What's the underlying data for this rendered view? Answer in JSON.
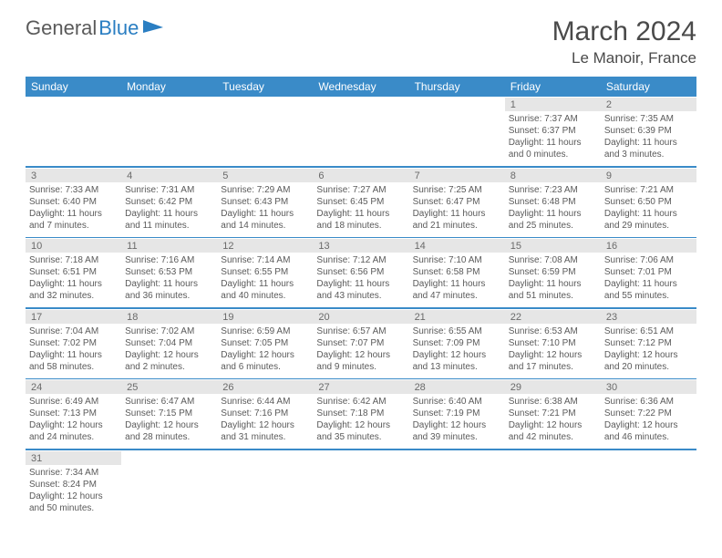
{
  "logo": {
    "text1": "General",
    "text2": "Blue"
  },
  "title": "March 2024",
  "location": "Le Manoir, France",
  "weekdays": [
    "Sunday",
    "Monday",
    "Tuesday",
    "Wednesday",
    "Thursday",
    "Friday",
    "Saturday"
  ],
  "colors": {
    "header_bg": "#3a8bc8",
    "header_text": "#ffffff",
    "daynum_bg": "#e6e6e6",
    "text": "#5a5a5a",
    "separator": "#3a8bc8"
  },
  "weeks": [
    {
      "nums": [
        "",
        "",
        "",
        "",
        "",
        "1",
        "2"
      ],
      "cells": [
        {
          "sunrise": "",
          "sunset": "",
          "daylight": ""
        },
        {
          "sunrise": "",
          "sunset": "",
          "daylight": ""
        },
        {
          "sunrise": "",
          "sunset": "",
          "daylight": ""
        },
        {
          "sunrise": "",
          "sunset": "",
          "daylight": ""
        },
        {
          "sunrise": "",
          "sunset": "",
          "daylight": ""
        },
        {
          "sunrise": "Sunrise: 7:37 AM",
          "sunset": "Sunset: 6:37 PM",
          "daylight": "Daylight: 11 hours and 0 minutes."
        },
        {
          "sunrise": "Sunrise: 7:35 AM",
          "sunset": "Sunset: 6:39 PM",
          "daylight": "Daylight: 11 hours and 3 minutes."
        }
      ]
    },
    {
      "nums": [
        "3",
        "4",
        "5",
        "6",
        "7",
        "8",
        "9"
      ],
      "cells": [
        {
          "sunrise": "Sunrise: 7:33 AM",
          "sunset": "Sunset: 6:40 PM",
          "daylight": "Daylight: 11 hours and 7 minutes."
        },
        {
          "sunrise": "Sunrise: 7:31 AM",
          "sunset": "Sunset: 6:42 PM",
          "daylight": "Daylight: 11 hours and 11 minutes."
        },
        {
          "sunrise": "Sunrise: 7:29 AM",
          "sunset": "Sunset: 6:43 PM",
          "daylight": "Daylight: 11 hours and 14 minutes."
        },
        {
          "sunrise": "Sunrise: 7:27 AM",
          "sunset": "Sunset: 6:45 PM",
          "daylight": "Daylight: 11 hours and 18 minutes."
        },
        {
          "sunrise": "Sunrise: 7:25 AM",
          "sunset": "Sunset: 6:47 PM",
          "daylight": "Daylight: 11 hours and 21 minutes."
        },
        {
          "sunrise": "Sunrise: 7:23 AM",
          "sunset": "Sunset: 6:48 PM",
          "daylight": "Daylight: 11 hours and 25 minutes."
        },
        {
          "sunrise": "Sunrise: 7:21 AM",
          "sunset": "Sunset: 6:50 PM",
          "daylight": "Daylight: 11 hours and 29 minutes."
        }
      ]
    },
    {
      "nums": [
        "10",
        "11",
        "12",
        "13",
        "14",
        "15",
        "16"
      ],
      "cells": [
        {
          "sunrise": "Sunrise: 7:18 AM",
          "sunset": "Sunset: 6:51 PM",
          "daylight": "Daylight: 11 hours and 32 minutes."
        },
        {
          "sunrise": "Sunrise: 7:16 AM",
          "sunset": "Sunset: 6:53 PM",
          "daylight": "Daylight: 11 hours and 36 minutes."
        },
        {
          "sunrise": "Sunrise: 7:14 AM",
          "sunset": "Sunset: 6:55 PM",
          "daylight": "Daylight: 11 hours and 40 minutes."
        },
        {
          "sunrise": "Sunrise: 7:12 AM",
          "sunset": "Sunset: 6:56 PM",
          "daylight": "Daylight: 11 hours and 43 minutes."
        },
        {
          "sunrise": "Sunrise: 7:10 AM",
          "sunset": "Sunset: 6:58 PM",
          "daylight": "Daylight: 11 hours and 47 minutes."
        },
        {
          "sunrise": "Sunrise: 7:08 AM",
          "sunset": "Sunset: 6:59 PM",
          "daylight": "Daylight: 11 hours and 51 minutes."
        },
        {
          "sunrise": "Sunrise: 7:06 AM",
          "sunset": "Sunset: 7:01 PM",
          "daylight": "Daylight: 11 hours and 55 minutes."
        }
      ]
    },
    {
      "nums": [
        "17",
        "18",
        "19",
        "20",
        "21",
        "22",
        "23"
      ],
      "cells": [
        {
          "sunrise": "Sunrise: 7:04 AM",
          "sunset": "Sunset: 7:02 PM",
          "daylight": "Daylight: 11 hours and 58 minutes."
        },
        {
          "sunrise": "Sunrise: 7:02 AM",
          "sunset": "Sunset: 7:04 PM",
          "daylight": "Daylight: 12 hours and 2 minutes."
        },
        {
          "sunrise": "Sunrise: 6:59 AM",
          "sunset": "Sunset: 7:05 PM",
          "daylight": "Daylight: 12 hours and 6 minutes."
        },
        {
          "sunrise": "Sunrise: 6:57 AM",
          "sunset": "Sunset: 7:07 PM",
          "daylight": "Daylight: 12 hours and 9 minutes."
        },
        {
          "sunrise": "Sunrise: 6:55 AM",
          "sunset": "Sunset: 7:09 PM",
          "daylight": "Daylight: 12 hours and 13 minutes."
        },
        {
          "sunrise": "Sunrise: 6:53 AM",
          "sunset": "Sunset: 7:10 PM",
          "daylight": "Daylight: 12 hours and 17 minutes."
        },
        {
          "sunrise": "Sunrise: 6:51 AM",
          "sunset": "Sunset: 7:12 PM",
          "daylight": "Daylight: 12 hours and 20 minutes."
        }
      ]
    },
    {
      "nums": [
        "24",
        "25",
        "26",
        "27",
        "28",
        "29",
        "30"
      ],
      "cells": [
        {
          "sunrise": "Sunrise: 6:49 AM",
          "sunset": "Sunset: 7:13 PM",
          "daylight": "Daylight: 12 hours and 24 minutes."
        },
        {
          "sunrise": "Sunrise: 6:47 AM",
          "sunset": "Sunset: 7:15 PM",
          "daylight": "Daylight: 12 hours and 28 minutes."
        },
        {
          "sunrise": "Sunrise: 6:44 AM",
          "sunset": "Sunset: 7:16 PM",
          "daylight": "Daylight: 12 hours and 31 minutes."
        },
        {
          "sunrise": "Sunrise: 6:42 AM",
          "sunset": "Sunset: 7:18 PM",
          "daylight": "Daylight: 12 hours and 35 minutes."
        },
        {
          "sunrise": "Sunrise: 6:40 AM",
          "sunset": "Sunset: 7:19 PM",
          "daylight": "Daylight: 12 hours and 39 minutes."
        },
        {
          "sunrise": "Sunrise: 6:38 AM",
          "sunset": "Sunset: 7:21 PM",
          "daylight": "Daylight: 12 hours and 42 minutes."
        },
        {
          "sunrise": "Sunrise: 6:36 AM",
          "sunset": "Sunset: 7:22 PM",
          "daylight": "Daylight: 12 hours and 46 minutes."
        }
      ]
    },
    {
      "nums": [
        "31",
        "",
        "",
        "",
        "",
        "",
        ""
      ],
      "cells": [
        {
          "sunrise": "Sunrise: 7:34 AM",
          "sunset": "Sunset: 8:24 PM",
          "daylight": "Daylight: 12 hours and 50 minutes."
        },
        {
          "sunrise": "",
          "sunset": "",
          "daylight": ""
        },
        {
          "sunrise": "",
          "sunset": "",
          "daylight": ""
        },
        {
          "sunrise": "",
          "sunset": "",
          "daylight": ""
        },
        {
          "sunrise": "",
          "sunset": "",
          "daylight": ""
        },
        {
          "sunrise": "",
          "sunset": "",
          "daylight": ""
        },
        {
          "sunrise": "",
          "sunset": "",
          "daylight": ""
        }
      ]
    }
  ]
}
